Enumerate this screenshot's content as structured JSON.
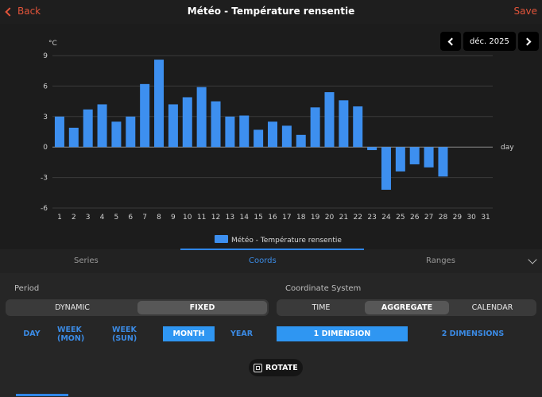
{
  "header": {
    "back_label": "Back",
    "title": "Météo - Température rensentie",
    "save_label": "Save"
  },
  "date_nav": {
    "label": "déc. 2025"
  },
  "chart_data": {
    "type": "bar",
    "title": "",
    "xlabel": "day",
    "ylabel": "°C",
    "ylim": [
      -6,
      9
    ],
    "yticks": [
      9,
      6,
      3,
      0,
      -3,
      -6
    ],
    "categories": [
      "1",
      "2",
      "3",
      "4",
      "5",
      "6",
      "7",
      "8",
      "9",
      "10",
      "11",
      "12",
      "13",
      "14",
      "15",
      "16",
      "17",
      "18",
      "19",
      "20",
      "21",
      "22",
      "23",
      "24",
      "25",
      "26",
      "27",
      "28",
      "29",
      "30",
      "31"
    ],
    "series": [
      {
        "name": "Météo - Température rensentie",
        "values": [
          3.0,
          1.9,
          3.7,
          4.2,
          2.5,
          3.0,
          6.2,
          8.6,
          4.2,
          4.9,
          5.9,
          4.5,
          3.0,
          3.1,
          1.7,
          2.5,
          2.1,
          1.2,
          3.9,
          5.4,
          4.6,
          4.0,
          -0.3,
          -4.2,
          -2.4,
          -1.7,
          -2.0,
          -2.9,
          null,
          null,
          null
        ]
      }
    ],
    "grid": true,
    "legend": "bottom-center",
    "bar_color": "#3d8fef"
  },
  "tabs": [
    {
      "label": "Series",
      "active": false
    },
    {
      "label": "Coords",
      "active": true
    },
    {
      "label": "Ranges",
      "active": false
    }
  ],
  "period": {
    "label": "Period",
    "modes": [
      "DYNAMIC",
      "FIXED"
    ],
    "selected_mode": "FIXED",
    "units": [
      "DAY",
      "WEEK (MON)",
      "WEEK (SUN)",
      "MONTH",
      "YEAR"
    ],
    "selected_unit": "MONTH"
  },
  "coordinate_system": {
    "label": "Coordinate System",
    "modes": [
      "TIME",
      "AGGREGATE",
      "CALENDAR"
    ],
    "selected_mode": "AGGREGATE",
    "dimensions": [
      "1 DIMENSION",
      "2 DIMENSIONS"
    ],
    "selected_dimension": "1 DIMENSION"
  },
  "rotate": {
    "label": "ROTATE"
  }
}
